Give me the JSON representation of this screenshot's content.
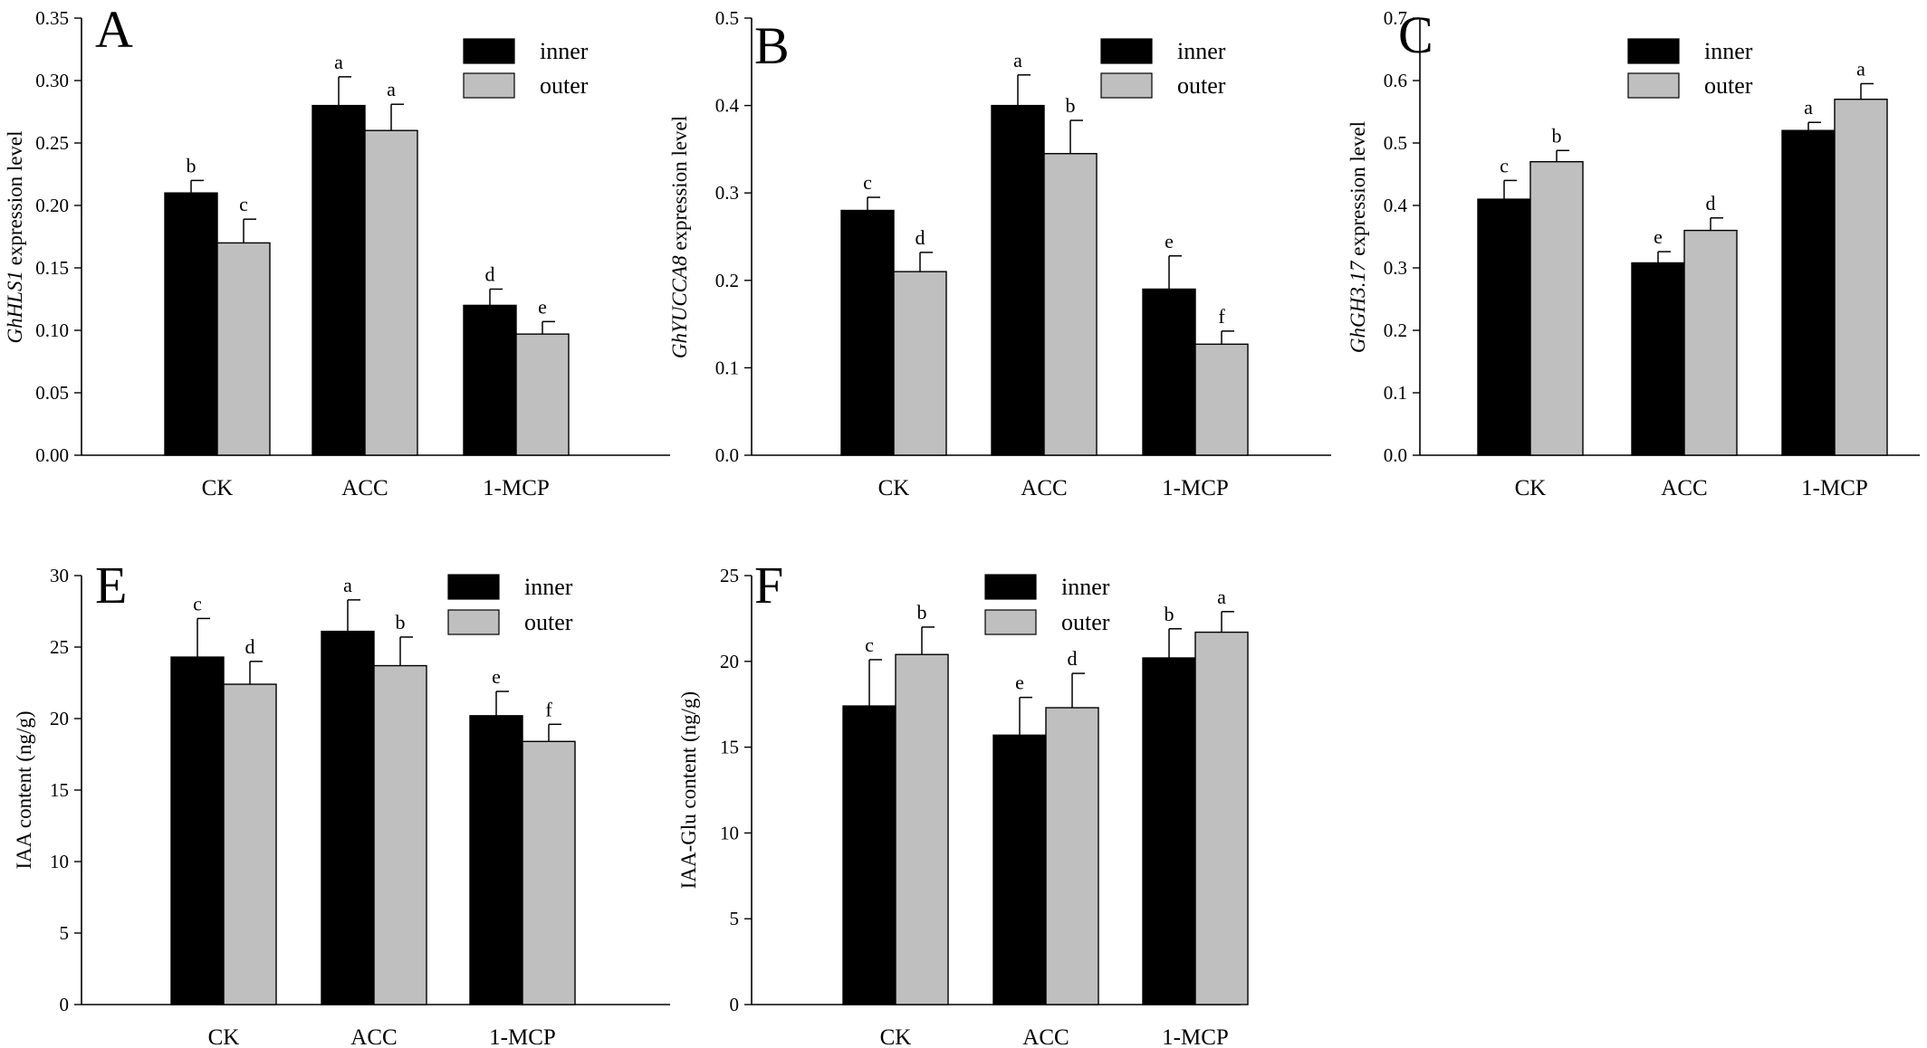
{
  "figure": {
    "legend_labels": [
      "inner",
      "outer"
    ],
    "series_colors": [
      "#000000",
      "#bfbfbf"
    ]
  },
  "chart_data": [
    {
      "panel": "A",
      "type": "bar",
      "ylabel_gene": "GhHLS1",
      "ylabel_suffix": " expression level",
      "categories": [
        "CK",
        "ACC",
        "1-MCP"
      ],
      "ylim": [
        0,
        0.35
      ],
      "yticks": [
        "0.00",
        "0.05",
        "0.10",
        "0.15",
        "0.20",
        "0.25",
        "0.30",
        "0.35"
      ],
      "legend_position": "top-right",
      "series": [
        {
          "name": "inner",
          "values": [
            0.21,
            0.28,
            0.12
          ],
          "errors": [
            0.01,
            0.023,
            0.013
          ],
          "letters": [
            "b",
            "a",
            "d"
          ]
        },
        {
          "name": "outer",
          "values": [
            0.17,
            0.26,
            0.097
          ],
          "errors": [
            0.019,
            0.021,
            0.01
          ],
          "letters": [
            "c",
            "a",
            "e"
          ]
        }
      ]
    },
    {
      "panel": "B",
      "type": "bar",
      "ylabel_gene": "GhYUCCA8",
      "ylabel_suffix": " expression level",
      "categories": [
        "CK",
        "ACC",
        "1-MCP"
      ],
      "ylim": [
        0,
        0.5
      ],
      "yticks": [
        "0.0",
        "0.1",
        "0.2",
        "0.3",
        "0.4",
        "0.5"
      ],
      "legend_position": "top-right",
      "series": [
        {
          "name": "inner",
          "values": [
            0.28,
            0.4,
            0.19
          ],
          "errors": [
            0.015,
            0.035,
            0.038
          ],
          "letters": [
            "c",
            "a",
            "e"
          ]
        },
        {
          "name": "outer",
          "values": [
            0.21,
            0.345,
            0.127
          ],
          "errors": [
            0.022,
            0.038,
            0.015
          ],
          "letters": [
            "d",
            "b",
            "f"
          ]
        }
      ]
    },
    {
      "panel": "C",
      "type": "bar",
      "ylabel_gene": "GhGH3.17",
      "ylabel_suffix": " expression level",
      "categories": [
        "CK",
        "ACC",
        "1-MCP"
      ],
      "ylim": [
        0,
        0.7
      ],
      "yticks": [
        "0.0",
        "0.1",
        "0.2",
        "0.3",
        "0.4",
        "0.5",
        "0.6",
        "0.7"
      ],
      "legend_position": "top-right",
      "series": [
        {
          "name": "inner",
          "values": [
            0.41,
            0.308,
            0.52
          ],
          "errors": [
            0.03,
            0.018,
            0.013
          ],
          "letters": [
            "c",
            "e",
            "a"
          ]
        },
        {
          "name": "outer",
          "values": [
            0.47,
            0.36,
            0.57
          ],
          "errors": [
            0.018,
            0.02,
            0.025
          ],
          "letters": [
            "b",
            "d",
            "a"
          ]
        }
      ]
    },
    {
      "panel": "E",
      "type": "bar",
      "ylabel_gene": "",
      "ylabel_suffix": "IAA content (ng/g)",
      "categories": [
        "CK",
        "ACC",
        "1-MCP"
      ],
      "ylim": [
        0,
        30
      ],
      "yticks": [
        "0",
        "5",
        "10",
        "15",
        "20",
        "25",
        "30"
      ],
      "legend_position": "top-right",
      "series": [
        {
          "name": "inner",
          "values": [
            24.3,
            26.1,
            20.2
          ],
          "errors": [
            2.7,
            2.2,
            1.7
          ],
          "letters": [
            "c",
            "a",
            "e"
          ]
        },
        {
          "name": "outer",
          "values": [
            22.4,
            23.7,
            18.4
          ],
          "errors": [
            1.6,
            2.0,
            1.2
          ],
          "letters": [
            "d",
            "b",
            "f"
          ]
        }
      ]
    },
    {
      "panel": "F",
      "type": "bar",
      "ylabel_gene": "",
      "ylabel_suffix": "IAA-Glu content (ng/g)",
      "categories": [
        "CK",
        "ACC",
        "1-MCP"
      ],
      "ylim": [
        0,
        25
      ],
      "yticks": [
        "0",
        "5",
        "10",
        "15",
        "20",
        "25"
      ],
      "legend_position": "top-right",
      "series": [
        {
          "name": "inner",
          "values": [
            17.4,
            15.7,
            20.2
          ],
          "errors": [
            2.7,
            2.2,
            1.7
          ],
          "letters": [
            "c",
            "e",
            "b"
          ]
        },
        {
          "name": "outer",
          "values": [
            20.4,
            17.3,
            21.7
          ],
          "errors": [
            1.6,
            2.0,
            1.2
          ],
          "letters": [
            "b",
            "d",
            "a"
          ]
        }
      ]
    }
  ]
}
